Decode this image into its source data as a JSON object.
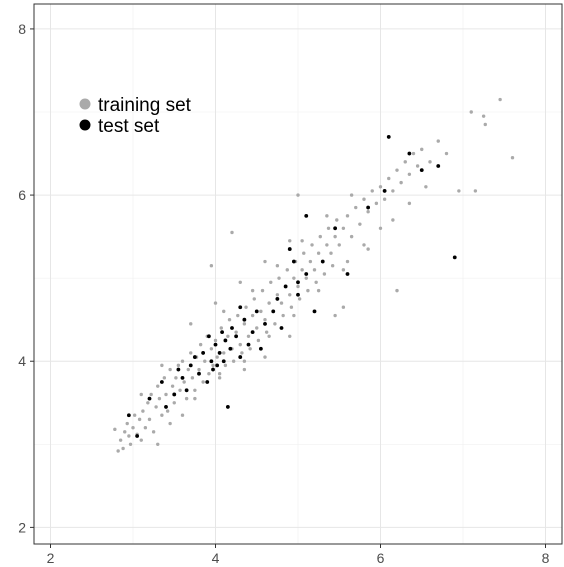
{
  "chart_data": {
    "type": "scatter",
    "title": "",
    "xlabel": "",
    "ylabel": "",
    "xlim": [
      1.8,
      8.2
    ],
    "ylim": [
      1.8,
      8.3
    ],
    "x_ticks": [
      2,
      4,
      6,
      8
    ],
    "y_ticks": [
      2,
      4,
      6,
      8
    ],
    "x_tick_labels": [
      "2",
      "4",
      "6",
      "8"
    ],
    "y_tick_labels": [
      "2",
      "4",
      "6",
      "8"
    ],
    "grid": true,
    "legend_placement": "top-left",
    "series": [
      {
        "name": "training set",
        "color": "#aaaaaa",
        "points": [
          [
            2.78,
            3.18
          ],
          [
            2.82,
            2.92
          ],
          [
            2.85,
            3.05
          ],
          [
            2.88,
            2.95
          ],
          [
            2.9,
            3.15
          ],
          [
            2.93,
            3.25
          ],
          [
            2.95,
            3.1
          ],
          [
            2.97,
            3.0
          ],
          [
            3.0,
            3.2
          ],
          [
            3.02,
            3.35
          ],
          [
            3.05,
            3.12
          ],
          [
            3.08,
            3.3
          ],
          [
            3.1,
            3.05
          ],
          [
            3.12,
            3.4
          ],
          [
            3.15,
            3.2
          ],
          [
            3.18,
            3.5
          ],
          [
            3.2,
            3.3
          ],
          [
            3.22,
            3.6
          ],
          [
            3.25,
            3.15
          ],
          [
            3.28,
            3.45
          ],
          [
            3.3,
            3.7
          ],
          [
            3.32,
            3.55
          ],
          [
            3.35,
            3.35
          ],
          [
            3.38,
            3.8
          ],
          [
            3.4,
            3.6
          ],
          [
            3.42,
            3.4
          ],
          [
            3.45,
            3.9
          ],
          [
            3.48,
            3.7
          ],
          [
            3.5,
            3.5
          ],
          [
            3.52,
            3.8
          ],
          [
            3.55,
            3.95
          ],
          [
            3.57,
            3.65
          ],
          [
            3.6,
            4.0
          ],
          [
            3.62,
            3.75
          ],
          [
            3.65,
            3.55
          ],
          [
            3.67,
            3.9
          ],
          [
            3.7,
            4.1
          ],
          [
            3.72,
            3.8
          ],
          [
            3.75,
            3.65
          ],
          [
            3.77,
            4.05
          ],
          [
            3.8,
            3.9
          ],
          [
            3.82,
            4.2
          ],
          [
            3.85,
            3.75
          ],
          [
            3.87,
            4.0
          ],
          [
            3.9,
            4.3
          ],
          [
            3.92,
            3.85
          ],
          [
            3.95,
            4.15
          ],
          [
            3.97,
            3.95
          ],
          [
            4.0,
            4.25
          ],
          [
            4.02,
            4.05
          ],
          [
            4.05,
            3.85
          ],
          [
            4.07,
            4.4
          ],
          [
            4.1,
            4.1
          ],
          [
            4.12,
            3.95
          ],
          [
            4.15,
            4.3
          ],
          [
            4.17,
            4.5
          ],
          [
            4.2,
            4.15
          ],
          [
            4.22,
            4.0
          ],
          [
            4.25,
            4.35
          ],
          [
            4.27,
            4.55
          ],
          [
            4.3,
            4.2
          ],
          [
            4.32,
            4.1
          ],
          [
            4.35,
            4.45
          ],
          [
            4.37,
            4.65
          ],
          [
            4.4,
            4.3
          ],
          [
            4.42,
            4.15
          ],
          [
            4.45,
            4.55
          ],
          [
            4.47,
            4.75
          ],
          [
            4.5,
            4.4
          ],
          [
            4.52,
            4.25
          ],
          [
            4.55,
            4.6
          ],
          [
            4.57,
            4.85
          ],
          [
            4.6,
            4.5
          ],
          [
            4.62,
            4.35
          ],
          [
            4.65,
            4.7
          ],
          [
            4.67,
            4.95
          ],
          [
            4.7,
            4.6
          ],
          [
            4.72,
            4.45
          ],
          [
            4.75,
            4.8
          ],
          [
            4.77,
            5.0
          ],
          [
            4.8,
            4.7
          ],
          [
            4.82,
            4.55
          ],
          [
            4.85,
            4.9
          ],
          [
            4.87,
            5.1
          ],
          [
            4.9,
            4.8
          ],
          [
            4.92,
            4.65
          ],
          [
            4.95,
            5.0
          ],
          [
            4.97,
            5.2
          ],
          [
            5.0,
            4.9
          ],
          [
            5.02,
            4.75
          ],
          [
            5.05,
            5.1
          ],
          [
            5.07,
            5.3
          ],
          [
            5.1,
            5.0
          ],
          [
            5.12,
            4.85
          ],
          [
            5.15,
            5.2
          ],
          [
            5.17,
            5.4
          ],
          [
            5.2,
            5.1
          ],
          [
            5.22,
            4.95
          ],
          [
            5.25,
            5.3
          ],
          [
            5.27,
            5.5
          ],
          [
            5.3,
            5.2
          ],
          [
            5.32,
            5.05
          ],
          [
            5.35,
            5.4
          ],
          [
            5.37,
            5.6
          ],
          [
            5.4,
            5.3
          ],
          [
            5.42,
            5.15
          ],
          [
            5.45,
            5.5
          ],
          [
            5.47,
            5.7
          ],
          [
            5.5,
            5.4
          ],
          [
            5.55,
            5.6
          ],
          [
            5.6,
            5.75
          ],
          [
            5.65,
            5.5
          ],
          [
            5.7,
            5.85
          ],
          [
            5.75,
            5.65
          ],
          [
            5.8,
            5.95
          ],
          [
            5.85,
            5.8
          ],
          [
            5.9,
            6.05
          ],
          [
            5.95,
            5.9
          ],
          [
            6.0,
            6.1
          ],
          [
            6.05,
            5.95
          ],
          [
            6.1,
            6.2
          ],
          [
            6.15,
            6.05
          ],
          [
            6.2,
            6.3
          ],
          [
            6.25,
            6.15
          ],
          [
            6.3,
            6.4
          ],
          [
            6.35,
            6.25
          ],
          [
            6.4,
            6.5
          ],
          [
            6.45,
            6.35
          ],
          [
            6.5,
            6.55
          ],
          [
            6.6,
            6.4
          ],
          [
            6.7,
            6.65
          ],
          [
            6.8,
            6.5
          ],
          [
            6.95,
            6.05
          ],
          [
            7.1,
            7.0
          ],
          [
            7.15,
            6.05
          ],
          [
            7.25,
            6.95
          ],
          [
            7.27,
            6.85
          ],
          [
            7.45,
            7.15
          ],
          [
            7.6,
            6.45
          ],
          [
            4.2,
            5.55
          ],
          [
            3.95,
            5.15
          ],
          [
            5.0,
            6.0
          ],
          [
            6.2,
            4.85
          ],
          [
            5.55,
            4.65
          ],
          [
            5.45,
            4.55
          ],
          [
            3.3,
            3.0
          ],
          [
            3.6,
            3.35
          ],
          [
            4.35,
            3.9
          ],
          [
            4.6,
            4.05
          ],
          [
            4.9,
            4.3
          ],
          [
            5.2,
            4.6
          ],
          [
            3.7,
            4.45
          ],
          [
            4.0,
            4.7
          ],
          [
            4.3,
            4.95
          ],
          [
            4.6,
            5.2
          ],
          [
            4.9,
            5.45
          ],
          [
            3.1,
            3.6
          ],
          [
            3.35,
            3.95
          ],
          [
            5.8,
            5.4
          ],
          [
            6.0,
            5.6
          ],
          [
            5.6,
            5.2
          ],
          [
            4.1,
            4.6
          ],
          [
            4.45,
            4.85
          ],
          [
            4.75,
            5.15
          ],
          [
            5.05,
            5.45
          ],
          [
            5.35,
            5.75
          ],
          [
            5.65,
            6.0
          ],
          [
            3.45,
            3.25
          ],
          [
            3.75,
            3.55
          ],
          [
            4.05,
            3.8
          ],
          [
            4.35,
            4.0
          ],
          [
            4.65,
            4.3
          ],
          [
            4.95,
            4.55
          ],
          [
            5.25,
            4.85
          ],
          [
            5.55,
            5.1
          ],
          [
            5.85,
            5.35
          ],
          [
            6.15,
            5.7
          ],
          [
            6.35,
            5.9
          ],
          [
            6.55,
            6.1
          ]
        ]
      },
      {
        "name": "test set",
        "color": "#000000",
        "points": [
          [
            2.95,
            3.35
          ],
          [
            3.05,
            3.1
          ],
          [
            3.2,
            3.55
          ],
          [
            3.35,
            3.75
          ],
          [
            3.4,
            3.45
          ],
          [
            3.55,
            3.9
          ],
          [
            3.6,
            3.8
          ],
          [
            3.65,
            3.65
          ],
          [
            3.7,
            3.95
          ],
          [
            3.75,
            4.05
          ],
          [
            3.8,
            3.85
          ],
          [
            3.85,
            4.1
          ],
          [
            3.9,
            3.75
          ],
          [
            3.92,
            4.3
          ],
          [
            3.95,
            4.0
          ],
          [
            3.97,
            3.9
          ],
          [
            4.0,
            4.2
          ],
          [
            4.02,
            3.95
          ],
          [
            4.05,
            4.1
          ],
          [
            4.08,
            4.35
          ],
          [
            4.1,
            4.0
          ],
          [
            4.12,
            4.25
          ],
          [
            4.15,
            3.45
          ],
          [
            4.18,
            4.15
          ],
          [
            4.2,
            4.4
          ],
          [
            4.25,
            4.3
          ],
          [
            4.3,
            4.05
          ],
          [
            4.35,
            4.5
          ],
          [
            4.4,
            4.2
          ],
          [
            4.45,
            4.35
          ],
          [
            4.5,
            4.6
          ],
          [
            4.55,
            4.15
          ],
          [
            4.6,
            4.45
          ],
          [
            4.7,
            4.6
          ],
          [
            4.75,
            4.75
          ],
          [
            4.8,
            4.4
          ],
          [
            4.85,
            4.9
          ],
          [
            4.9,
            5.35
          ],
          [
            4.95,
            5.2
          ],
          [
            5.0,
            4.8
          ],
          [
            5.1,
            5.05
          ],
          [
            5.1,
            5.75
          ],
          [
            5.2,
            4.6
          ],
          [
            5.3,
            5.2
          ],
          [
            5.6,
            5.05
          ],
          [
            5.85,
            5.85
          ],
          [
            6.05,
            6.05
          ],
          [
            6.1,
            6.7
          ],
          [
            6.35,
            6.5
          ],
          [
            6.5,
            6.3
          ],
          [
            6.7,
            6.35
          ],
          [
            6.9,
            5.25
          ],
          [
            5.45,
            5.6
          ],
          [
            4.3,
            4.65
          ],
          [
            3.5,
            3.6
          ],
          [
            5.0,
            4.95
          ]
        ]
      }
    ]
  },
  "legend": {
    "items": [
      {
        "label": "training set",
        "color": "#aaaaaa"
      },
      {
        "label": "test set",
        "color": "#000000"
      }
    ]
  }
}
